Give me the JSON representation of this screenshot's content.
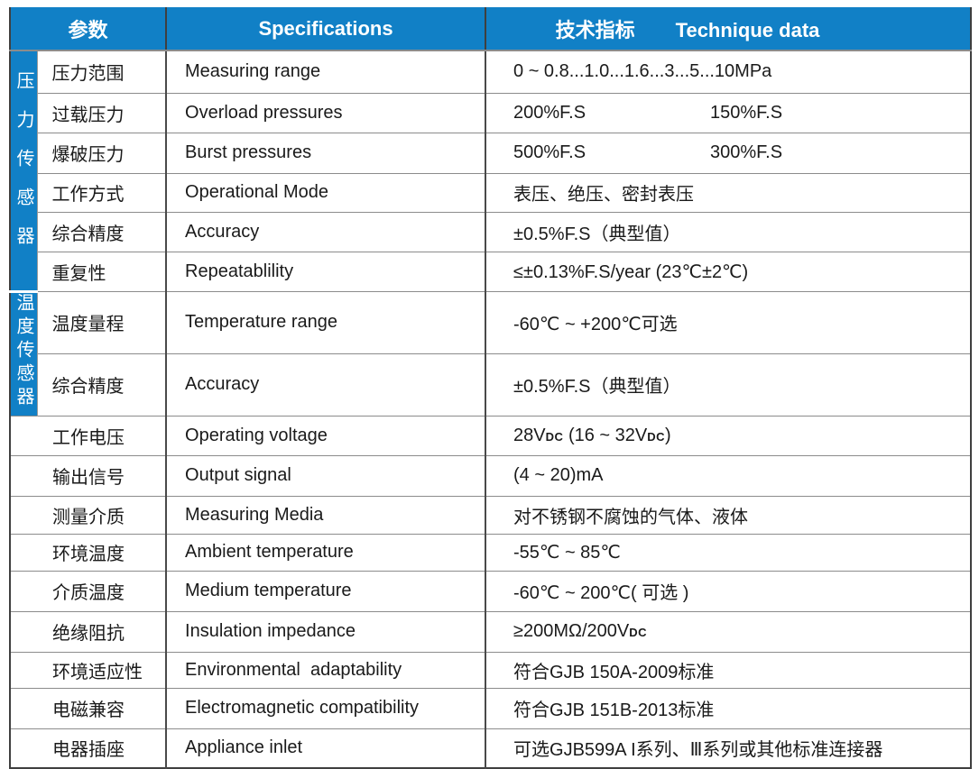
{
  "colors": {
    "header_blue": "#1180c6",
    "divider_dark": "#4a4a4a",
    "row_line_gray": "#8c8c8c",
    "text": "#1a1a1a"
  },
  "header": {
    "col_param": "参数",
    "col_spec": "Specifications",
    "col_value_cn": "技术指标",
    "col_value_en": "Technique data"
  },
  "groups": [
    {
      "label": "压力传感器"
    },
    {
      "label": "温度传感器"
    }
  ],
  "rows": [
    {
      "cn": "压力范围",
      "en": "Measuring range",
      "value": "0 ~ 0.8...1.0...1.6...3...5...10MPa"
    },
    {
      "cn": "过载压力",
      "en": "Overload pressures",
      "value": "200%F.S",
      "value2": "150%F.S"
    },
    {
      "cn": "爆破压力",
      "en": "Burst pressures",
      "value": "500%F.S",
      "value2": "300%F.S"
    },
    {
      "cn": "工作方式",
      "en": "Operational Mode",
      "value": "表压、绝压、密封表压"
    },
    {
      "cn": "综合精度",
      "en": "Accuracy",
      "value": "±0.5%F.S（典型值）"
    },
    {
      "cn": "重复性",
      "en": "Repeatablility",
      "value": "≤±0.13%F.S/year  (23℃±2℃)"
    },
    {
      "cn": "温度量程",
      "en": "Temperature range",
      "value": "-60℃ ~ +200℃可选"
    },
    {
      "cn": "综合精度",
      "en": "Accuracy",
      "value": "±0.5%F.S（典型值）"
    },
    {
      "cn": "工作电压",
      "en": "Operating voltage",
      "value_segments": [
        {
          "t": "28V"
        },
        {
          "t": "DC",
          "small": true
        },
        {
          "t": " (16 ~ 32V"
        },
        {
          "t": "DC",
          "small": true
        },
        {
          "t": ")"
        }
      ]
    },
    {
      "cn": "输出信号",
      "en": "Output signal",
      "value": "(4 ~ 20)mA"
    },
    {
      "cn": "测量介质",
      "en": "Measuring Media",
      "value": "对不锈钢不腐蚀的气体、液体"
    },
    {
      "cn": "环境温度",
      "en": "Ambient temperature",
      "value": "-55℃ ~ 85℃"
    },
    {
      "cn": "介质温度",
      "en": "Medium temperature",
      "value": "-60℃ ~ 200℃( 可选 )"
    },
    {
      "cn": "绝缘阻抗",
      "en": "Insulation impedance",
      "value_segments": [
        {
          "t": "≥200MΩ/200V"
        },
        {
          "t": "DC",
          "small": true
        }
      ]
    },
    {
      "cn": "环境适应性",
      "en": "Environmental  adaptability",
      "value": "符合GJB 150A-2009标准"
    },
    {
      "cn": "电磁兼容",
      "en": "Electromagnetic compatibility",
      "value": "符合GJB 151B-2013标准"
    },
    {
      "cn": "电器插座",
      "en": "Appliance inlet",
      "value": "可选GJB599A I系列、Ⅲ系列或其他标准连接器"
    }
  ]
}
